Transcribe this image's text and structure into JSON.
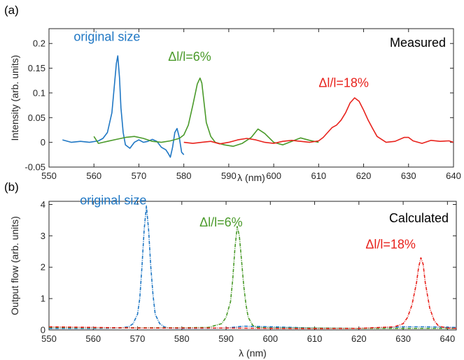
{
  "chart_data": [
    {
      "panel": "(a)",
      "type": "line",
      "corner_label": "Measured",
      "xlabel": "λ (nm)",
      "ylabel": "Intensity (arb. units)",
      "xlim": [
        550,
        640
      ],
      "ylim": [
        -0.05,
        0.23
      ],
      "xticks": [
        550,
        560,
        570,
        580,
        590,
        600,
        610,
        620,
        630,
        640
      ],
      "yticks": [
        -0.05,
        0,
        0.05,
        0.1,
        0.15,
        0.2
      ],
      "ytick_labels": [
        "-0.05",
        "0",
        "0.05",
        "0.1",
        "0.15",
        "0.2"
      ],
      "grid": false,
      "annotations": [
        {
          "text": "original size",
          "color": "#1f77c4",
          "x": 555.5,
          "y": 0.205
        },
        {
          "text": "Δl/l=6%",
          "color": "#4a9a2a",
          "x": 576.5,
          "y": 0.165
        },
        {
          "text": "Δl/l=18%",
          "color": "#e8221c",
          "x": 610,
          "y": 0.112
        }
      ],
      "series": [
        {
          "color": "#1f77c4",
          "x": [
            553,
            555,
            557,
            559,
            561,
            562,
            563,
            564,
            564.5,
            565,
            565.3,
            565.7,
            566,
            566.5,
            567,
            568,
            569,
            570,
            571,
            572,
            573,
            574,
            575,
            576,
            576.5,
            577,
            577.5,
            578,
            578.5,
            579,
            579.5,
            580
          ],
          "y": [
            0.005,
            0.0,
            0.002,
            0.0,
            0.003,
            0.008,
            0.02,
            0.06,
            0.11,
            0.16,
            0.175,
            0.13,
            0.07,
            0.02,
            -0.005,
            -0.012,
            0.0,
            0.005,
            0.0,
            0.002,
            0.006,
            0.002,
            -0.01,
            -0.015,
            -0.022,
            -0.03,
            -0.01,
            0.02,
            0.028,
            0.01,
            -0.02,
            -0.025
          ]
        },
        {
          "color": "#4a9a2a",
          "x": [
            560,
            561,
            562,
            563,
            565,
            567,
            569,
            571,
            573,
            575,
            577,
            579,
            580,
            581,
            582,
            583,
            583.6,
            584,
            584.5,
            585,
            586,
            587,
            589,
            591,
            593,
            595,
            596.5,
            598,
            600,
            602,
            604,
            606,
            608,
            610
          ],
          "y": [
            0.012,
            -0.002,
            0.0,
            0.002,
            0.006,
            0.01,
            0.012,
            0.008,
            0.002,
            0.0,
            0.003,
            0.008,
            0.015,
            0.035,
            0.075,
            0.118,
            0.13,
            0.12,
            0.08,
            0.04,
            0.012,
            0.0,
            -0.005,
            -0.008,
            -0.002,
            0.01,
            0.027,
            0.018,
            0.0,
            -0.005,
            0.002,
            0.009,
            0.004,
            0.0
          ]
        },
        {
          "color": "#e8221c",
          "x": [
            580,
            582,
            584,
            586,
            588,
            590,
            592,
            594,
            596,
            598,
            600,
            602,
            604,
            606,
            608,
            610,
            611,
            612,
            613,
            614,
            615,
            616,
            617,
            618,
            619,
            620,
            621,
            622,
            623,
            625,
            627,
            629,
            630,
            631,
            633,
            635,
            637,
            639,
            640
          ],
          "y": [
            0.0,
            -0.002,
            0.0,
            0.002,
            -0.003,
            0.0,
            0.005,
            0.008,
            0.005,
            0.0,
            -0.002,
            0.002,
            0.004,
            0.002,
            0.0,
            0.003,
            0.01,
            0.02,
            0.03,
            0.035,
            0.045,
            0.06,
            0.08,
            0.09,
            0.083,
            0.065,
            0.045,
            0.028,
            0.012,
            0.0,
            0.002,
            0.01,
            0.01,
            0.003,
            -0.002,
            0.004,
            0.002,
            0.003,
            0.0
          ]
        }
      ]
    },
    {
      "panel": "(b)",
      "type": "line",
      "corner_label": "Calculated",
      "xlabel": "λ (nm)",
      "ylabel": "Output flow (arb. units)",
      "xlim": [
        550,
        642
      ],
      "ylim": [
        0,
        4.1
      ],
      "xticks": [
        550,
        560,
        570,
        580,
        590,
        600,
        610,
        620,
        630,
        640
      ],
      "yticks": [
        0,
        1,
        2,
        3,
        4
      ],
      "ytick_labels": [
        "0",
        "1",
        "2",
        "3",
        "4"
      ],
      "grid": false,
      "annotations": [
        {
          "text": "original size",
          "color": "#1f77c4",
          "x": 557,
          "y": 4.0
        },
        {
          "text": "Δl/l=6%",
          "color": "#4a9a2a",
          "x": 584,
          "y": 3.3
        },
        {
          "text": "Δl/l=18%",
          "color": "#e8221c",
          "x": 621.5,
          "y": 2.6
        }
      ],
      "series": [
        {
          "color": "#1f77c4",
          "x": [
            550,
            560,
            566,
            568,
            569,
            570,
            570.5,
            571,
            571.5,
            572,
            572.5,
            573,
            573.5,
            574,
            575,
            576,
            577,
            580,
            590,
            594,
            600,
            610,
            620,
            630,
            635,
            642
          ],
          "y": [
            0.05,
            0.05,
            0.06,
            0.1,
            0.2,
            0.5,
            1.0,
            2.0,
            3.2,
            3.95,
            3.2,
            2.0,
            1.1,
            0.5,
            0.2,
            0.1,
            0.06,
            0.05,
            0.06,
            0.12,
            0.1,
            0.06,
            0.05,
            0.1,
            0.1,
            0.08
          ]
        },
        {
          "color": "#4a9a2a",
          "x": [
            550,
            560,
            570,
            580,
            586,
            589,
            590,
            591,
            591.5,
            592,
            592.5,
            593,
            593.5,
            594,
            594.5,
            595,
            596,
            597,
            600,
            610,
            620,
            630,
            642
          ],
          "y": [
            0.08,
            0.07,
            0.07,
            0.07,
            0.08,
            0.2,
            0.4,
            0.9,
            1.6,
            2.6,
            3.3,
            3.0,
            2.2,
            1.4,
            0.8,
            0.4,
            0.15,
            0.08,
            0.06,
            0.06,
            0.05,
            0.05,
            0.05
          ]
        },
        {
          "color": "#e8221c",
          "x": [
            550,
            560,
            570,
            580,
            590,
            600,
            610,
            620,
            628,
            630,
            631,
            632,
            633,
            633.5,
            634,
            634.5,
            635,
            636,
            637,
            638,
            640,
            642
          ],
          "y": [
            0.1,
            0.08,
            0.06,
            0.06,
            0.06,
            0.05,
            0.04,
            0.05,
            0.1,
            0.2,
            0.4,
            0.8,
            1.5,
            2.0,
            2.3,
            2.1,
            1.5,
            0.7,
            0.3,
            0.12,
            0.06,
            0.05
          ]
        }
      ]
    }
  ]
}
